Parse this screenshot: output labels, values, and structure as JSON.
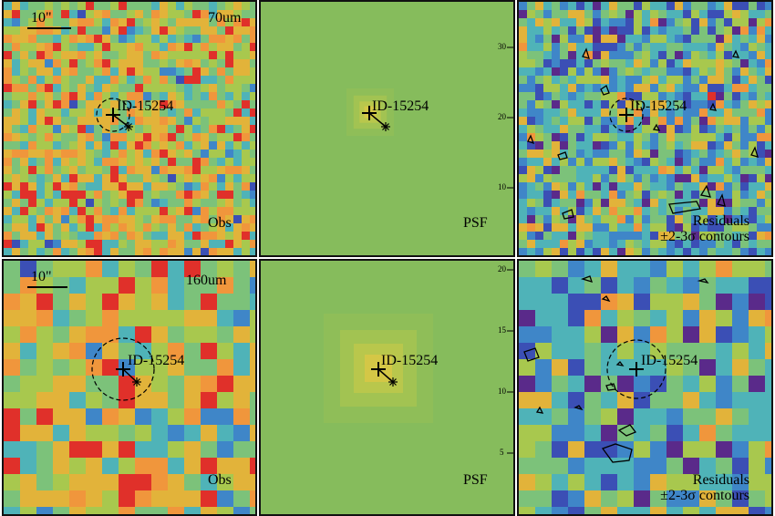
{
  "colors": {
    "palette": [
      "#5a2a8a",
      "#3b4fb5",
      "#3f86c8",
      "#4fb3b8",
      "#7cc27a",
      "#a8c84e",
      "#e2b33a",
      "#f0963c",
      "#e0302a"
    ],
    "psf_background": "#86bc5c",
    "psf_core": "#d9c84a",
    "border": "#111111",
    "marker": "#000000"
  },
  "rows": [
    {
      "obs": {
        "band": "70um",
        "scale": "10\"",
        "source_id": "ID-15254",
        "corner_label": "Obs"
      },
      "psf": {
        "source_id": "ID-15254",
        "corner_label": "PSF"
      },
      "resid": {
        "source_id": "ID-15254",
        "corner_label_1": "Residuals",
        "corner_label_2": "±2-3σ contours"
      },
      "axis_ticks": [
        "30",
        "20",
        "10"
      ]
    },
    {
      "obs": {
        "band": "160um",
        "scale": "10\"",
        "source_id": "ID-15254",
        "corner_label": "Obs"
      },
      "psf": {
        "source_id": "ID-15254",
        "corner_label": "PSF"
      },
      "resid": {
        "source_id": "ID-15254",
        "corner_label_1": "Residuals",
        "corner_label_2": "±2-3σ contours"
      },
      "axis_ticks": [
        "20",
        "15",
        "10",
        "5"
      ]
    }
  ]
}
